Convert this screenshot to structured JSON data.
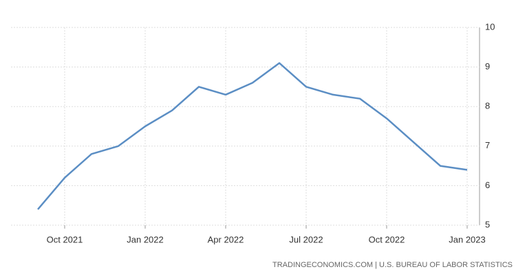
{
  "chart_data": {
    "type": "line",
    "x": [
      "2021-09",
      "2021-10",
      "2021-11",
      "2021-12",
      "2022-01",
      "2022-02",
      "2022-03",
      "2022-04",
      "2022-05",
      "2022-06",
      "2022-07",
      "2022-08",
      "2022-09",
      "2022-10",
      "2022-11",
      "2022-12",
      "2023-01"
    ],
    "series": [
      {
        "color": "#5b8ec4",
        "values": [
          5.4,
          6.2,
          6.8,
          7.0,
          7.5,
          7.9,
          8.5,
          8.3,
          8.6,
          9.1,
          8.5,
          8.3,
          8.2,
          7.7,
          7.1,
          6.5,
          6.4
        ]
      }
    ],
    "xlim": [
      "2021-08",
      "2023-02"
    ],
    "xticks": [
      {
        "value": "2021-10",
        "label": "Oct 2021"
      },
      {
        "value": "2022-01",
        "label": "Jan 2022"
      },
      {
        "value": "2022-04",
        "label": "Apr 2022"
      },
      {
        "value": "2022-07",
        "label": "Jul 2022"
      },
      {
        "value": "2022-10",
        "label": "Oct 2022"
      },
      {
        "value": "2023-01",
        "label": "Jan 2023"
      }
    ],
    "ylim": [
      5,
      10
    ],
    "yticks": [
      5,
      6,
      7,
      8,
      9,
      10
    ],
    "grid": true,
    "source": "TRADINGECONOMICS.COM | U.S. BUREAU OF LABOR STATISTICS"
  }
}
